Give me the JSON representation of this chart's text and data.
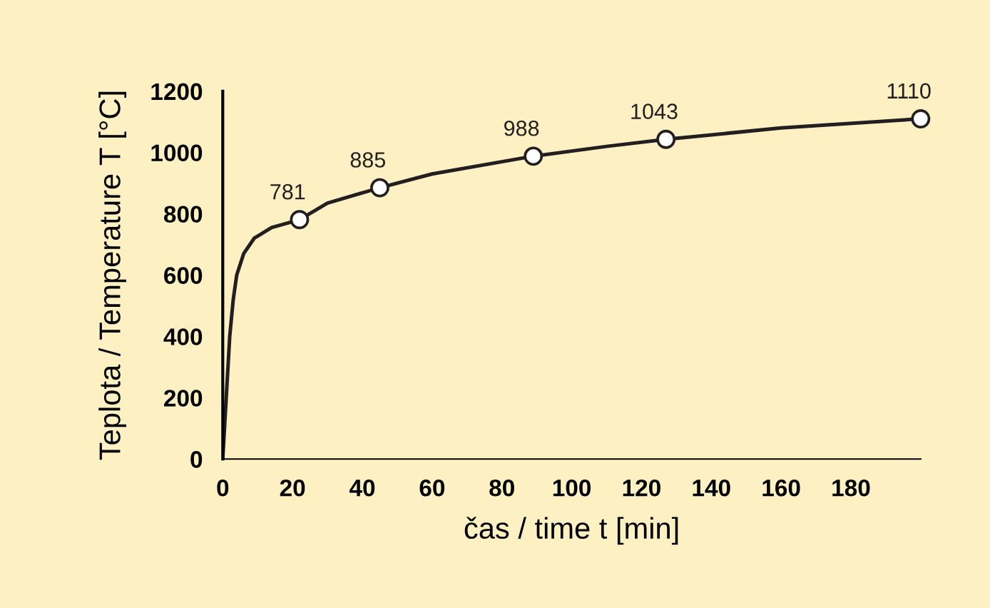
{
  "chart_data": {
    "type": "line",
    "xlabel": "čas / time t [min]",
    "ylabel": "Teplota / Temperature T [°C]",
    "xlim": [
      0,
      200
    ],
    "xticks": [
      0,
      20,
      40,
      60,
      80,
      100,
      120,
      140,
      160,
      180
    ],
    "ylim": [
      0,
      1200
    ],
    "yticks": [
      0,
      200,
      400,
      600,
      800,
      1000,
      1200
    ],
    "grid": false,
    "legend": false,
    "series": [
      {
        "color": "#231f20",
        "marker": "none",
        "x": [
          0,
          1,
          2,
          3,
          4,
          6,
          9,
          14,
          22,
          30,
          45,
          60,
          89,
          110,
          127,
          160,
          200
        ],
        "values": [
          0,
          200,
          400,
          520,
          600,
          670,
          720,
          755,
          781,
          835,
          885,
          930,
          988,
          1020,
          1043,
          1080,
          1110
        ]
      },
      {
        "type": "scatter",
        "color": "#231f20",
        "marker": "circle",
        "data_labels": true,
        "x": [
          22,
          45,
          89,
          127,
          200
        ],
        "values": [
          781,
          885,
          988,
          1043,
          1110
        ]
      }
    ]
  }
}
